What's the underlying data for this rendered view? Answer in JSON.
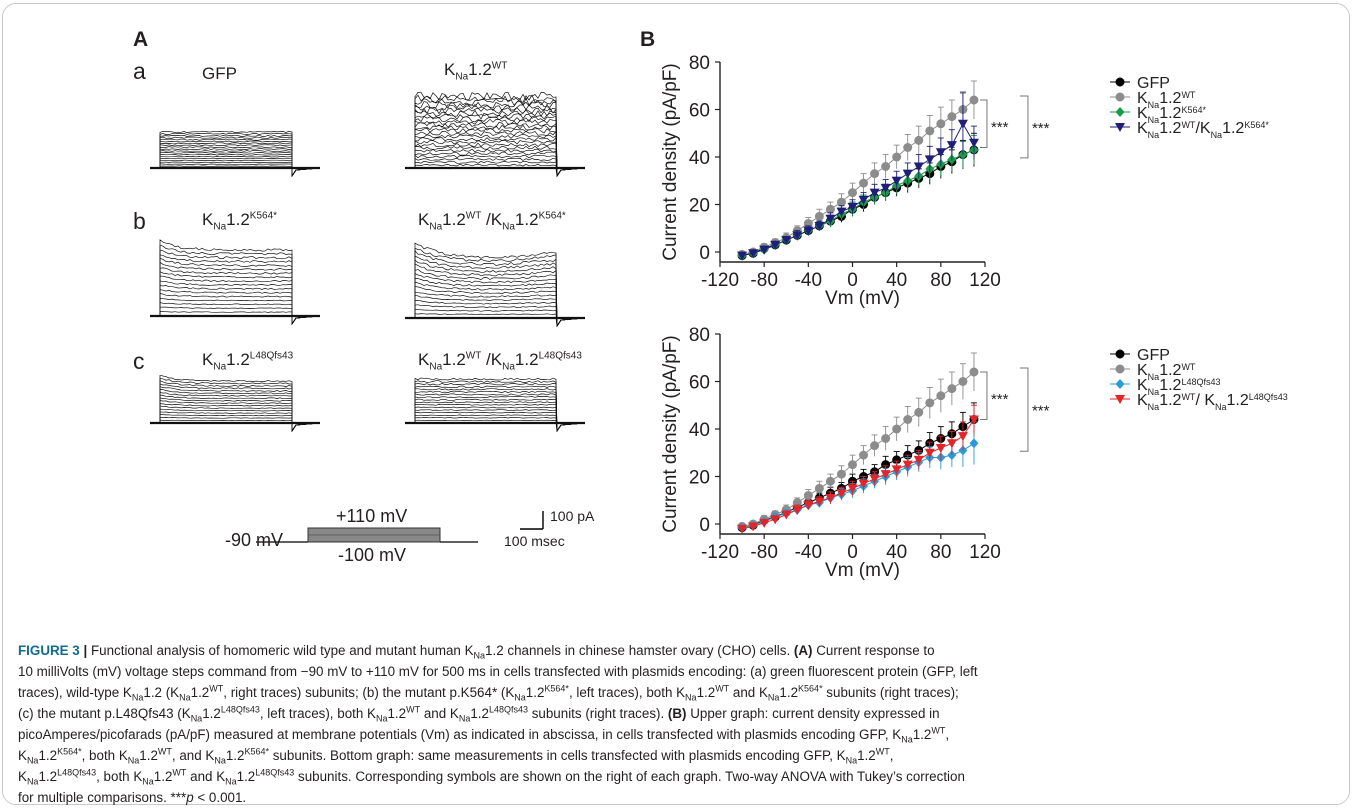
{
  "panelA": {
    "label": "A",
    "rows": [
      "a",
      "b",
      "c"
    ],
    "titles": {
      "a_left": "GFP",
      "a_right": {
        "base": "K",
        "sub": "Na",
        "rest": "1.2",
        "sup": "WT"
      },
      "b_left": {
        "base": "K",
        "sub": "Na",
        "rest": "1.2",
        "sup": "K564*"
      },
      "b_right": {
        "base1": "K",
        "sub1": "Na",
        "rest1": "1.2",
        "sup1": "WT",
        "sep": " /",
        "base2": "K",
        "sub2": "Na",
        "rest2": "1.2",
        "sup2": "K564*"
      },
      "c_left": {
        "base": "K",
        "sub": "Na",
        "rest": "1.2",
        "sup": "L48Qfs43"
      },
      "c_right": {
        "base1": "K",
        "sub1": "Na",
        "rest1": "1.2",
        "sup1": "WT",
        "sep": " /",
        "base2": "K",
        "sub2": "Na",
        "rest2": "1.2",
        "sup2": "L48Qfs43"
      }
    },
    "protocol": {
      "hold": "-90 mV",
      "top": "+110 mV",
      "bottom": "-100 mV"
    },
    "scalebar": {
      "current": "100 pA",
      "time": "100 msec"
    }
  },
  "panelB": {
    "label": "B"
  },
  "chart_data": [
    {
      "type": "line",
      "xlabel": "Vm (mV)",
      "ylabel": "Current density (pA/pF)",
      "xlim": [
        -120,
        120
      ],
      "ylim": [
        0,
        80
      ],
      "xticks": [
        "-120",
        "-80",
        "-40",
        "0",
        "40",
        "80",
        "120"
      ],
      "yticks": [
        "0",
        "20",
        "40",
        "60",
        "80"
      ],
      "x": [
        -100,
        -90,
        -80,
        -70,
        -60,
        -50,
        -40,
        -30,
        -20,
        -10,
        0,
        10,
        20,
        30,
        40,
        50,
        60,
        70,
        80,
        90,
        100,
        110
      ],
      "series": [
        {
          "name": "GFP",
          "color": "#000000",
          "marker": "circle",
          "values": [
            -1.5,
            -0.5,
            1.5,
            3,
            5,
            7,
            9,
            11,
            13,
            15,
            18,
            20,
            23,
            25,
            27,
            29,
            31,
            33,
            36,
            38,
            41,
            43
          ],
          "errors": [
            1,
            1,
            1,
            1.5,
            1.5,
            2,
            2,
            2,
            2.5,
            2.5,
            3,
            3,
            3,
            3.5,
            3.5,
            4,
            4,
            4.5,
            5,
            5,
            6,
            7
          ]
        },
        {
          "name": "KNa1.2WT",
          "color": "#8c8c8c",
          "marker": "circle",
          "values": [
            -1,
            0,
            2,
            4,
            6,
            9,
            12,
            15,
            18,
            21,
            25,
            29,
            33,
            36,
            40,
            44,
            47,
            51,
            54,
            57,
            60,
            64
          ],
          "errors": [
            1,
            1,
            1.5,
            1.5,
            2,
            2,
            2.5,
            3,
            3,
            3.5,
            4,
            4,
            4.5,
            5,
            5,
            5.5,
            6,
            6.5,
            7,
            7,
            7.5,
            8
          ]
        },
        {
          "name": "KNa1.2K564*",
          "color": "#1a9d4a",
          "marker": "diamond",
          "values": [
            -1.5,
            -0.5,
            1,
            3,
            5,
            7,
            9,
            11,
            13,
            16,
            18,
            21,
            23,
            25,
            28,
            30,
            32,
            35,
            37,
            39,
            41,
            43
          ],
          "errors": [
            1,
            1,
            1,
            1.5,
            1.5,
            2,
            2,
            2,
            2.5,
            2.5,
            3,
            3,
            3,
            3.5,
            3.5,
            4,
            4,
            4.5,
            5,
            5,
            5.5,
            6
          ]
        },
        {
          "name": "KNa1.2WT/KNa1.2K564*",
          "color": "#1f1f7a",
          "marker": "triangle-down",
          "values": [
            -1.5,
            -0.5,
            1,
            3,
            5,
            7,
            9,
            11,
            14,
            17,
            19,
            22,
            25,
            27,
            30,
            33,
            36,
            39,
            42,
            45,
            54,
            46
          ],
          "errors": [
            1,
            1,
            1,
            1.5,
            1.5,
            2,
            2,
            2,
            2.5,
            2.5,
            3,
            3,
            3.5,
            3.5,
            4,
            4.5,
            5,
            5.5,
            6,
            6.5,
            13,
            7
          ]
        }
      ],
      "annotations": [
        "***",
        "***"
      ]
    },
    {
      "type": "line",
      "xlabel": "Vm (mV)",
      "ylabel": "Current density (pA/pF)",
      "xlim": [
        -120,
        120
      ],
      "ylim": [
        0,
        80
      ],
      "xticks": [
        "-120",
        "-80",
        "-40",
        "0",
        "40",
        "80",
        "120"
      ],
      "yticks": [
        "0",
        "20",
        "40",
        "60",
        "80"
      ],
      "x": [
        -100,
        -90,
        -80,
        -70,
        -60,
        -50,
        -40,
        -30,
        -20,
        -10,
        0,
        10,
        20,
        30,
        40,
        50,
        60,
        70,
        80,
        90,
        100,
        110
      ],
      "series": [
        {
          "name": "GFP",
          "color": "#000000",
          "marker": "circle",
          "values": [
            -1.5,
            -0.5,
            1.5,
            3,
            5,
            7,
            9,
            11,
            13,
            15,
            18,
            20,
            22,
            25,
            27,
            29,
            31,
            34,
            36,
            38,
            41,
            44
          ],
          "errors": [
            1,
            1,
            1,
            1.5,
            1.5,
            2,
            2,
            2,
            2.5,
            2.5,
            3,
            3,
            3,
            3.5,
            3.5,
            4,
            4,
            4.5,
            5,
            5,
            6,
            7
          ]
        },
        {
          "name": "KNa1.2WT",
          "color": "#8c8c8c",
          "marker": "circle",
          "values": [
            -1,
            0,
            2,
            4,
            6,
            9,
            12,
            15,
            18,
            21,
            25,
            29,
            33,
            36,
            40,
            44,
            47,
            51,
            54,
            57,
            60,
            64
          ],
          "errors": [
            1,
            1,
            1.5,
            1.5,
            2,
            2,
            2.5,
            3,
            3,
            3.5,
            4,
            4,
            4.5,
            5,
            5,
            5.5,
            6,
            6.5,
            7,
            7,
            7.5,
            8
          ]
        },
        {
          "name": "KNa1.2L48Qfs43",
          "color": "#2a9bd8",
          "marker": "diamond",
          "values": [
            -1.5,
            -0.5,
            1,
            3,
            4.5,
            6,
            8,
            9,
            11,
            12.5,
            14,
            16,
            18,
            20,
            22,
            24,
            26,
            28,
            28,
            29,
            31,
            34
          ],
          "errors": [
            1,
            1,
            1,
            1.5,
            1.5,
            2,
            2,
            2,
            2.5,
            2.5,
            3,
            3,
            3,
            3.5,
            3.5,
            4,
            4,
            4.5,
            5,
            5,
            7,
            9
          ]
        },
        {
          "name": "KNa1.2WT/ KNa1.2L48Qfs43",
          "color": "#e0262b",
          "marker": "triangle-down",
          "values": [
            -2,
            -1,
            0.5,
            2,
            4,
            6,
            8,
            9.5,
            11,
            13,
            15,
            17,
            19,
            21,
            23,
            25,
            27,
            30,
            32,
            34,
            37,
            44
          ],
          "errors": [
            1,
            1,
            1,
            1.5,
            1.5,
            2,
            2,
            2,
            2.5,
            2.5,
            3,
            3,
            3,
            3.5,
            3.5,
            4,
            4,
            4.5,
            5,
            5,
            6,
            6
          ]
        }
      ],
      "annotations": [
        "***",
        "***"
      ]
    }
  ],
  "caption": {
    "fig": "FIGURE 3",
    "sep": " | ",
    "l1": "Functional analysis of homomeric wild type and mutant human K",
    "l1b": "1.2 channels in chinese hamster ovary (CHO) cells. ",
    "l1A": "(A)",
    "l1c": " Current response to",
    "l2": "10 milliVolts (mV) voltage steps command from −90 mV to +110 mV for 500 ms in cells transfected with plasmids encoding: (a) green fluorescent protein (GFP, left",
    "l3a": "traces), wild-type K",
    "l3b": "1.2 (K",
    "l3c": "1.2",
    "l3d": ", right traces) subunits; (b) the mutant p.K564* (K",
    "l3e": "1.2",
    "l3f": ", left traces), both K",
    "l3g": "1.2",
    "l3h": " and K",
    "l3i": "1.2",
    "l3j": " subunits (right traces);",
    "l4a": "(c) the mutant p.L48Qfs43 (K",
    "l4b": "1.2",
    "l4c": ", left traces), both K",
    "l4d": "1.2",
    "l4e": " and K",
    "l4f": "1.2",
    "l4g": " subunits (right traces). ",
    "l4B": "(B)",
    "l4h": " Upper graph: current density expressed in",
    "l5a": "picoAmperes/picofarads (pA/pF) measured at membrane potentials (Vm) as indicated in abscissa, in cells transfected with plasmids encoding GFP, K",
    "l5b": "1.2",
    "l5c": ",",
    "l6a": "K",
    "l6b": "1.2",
    "l6c": ", both K",
    "l6d": "1.2",
    "l6e": ", and K",
    "l6f": "1.2",
    "l6g": " subunits. Bottom graph: same measurements in cells transfected with plasmids encoding GFP, K",
    "l6h": "1.2",
    "l6i": ",",
    "l7a": "K",
    "l7b": "1.2",
    "l7c": ", both K",
    "l7d": "1.2",
    "l7e": " and K",
    "l7f": "1.2",
    "l7g": " subunits. Corresponding symbols are shown on the right of each graph. Two-way ANOVA with Tukey’s correction",
    "l8a": "for multiple comparisons. ***",
    "l8p": "p",
    "l8b": " < 0.001.",
    "sub_na": "Na",
    "sup_wt": "WT",
    "sup_k564": "K564*",
    "sup_l48": "L48Qfs43"
  }
}
